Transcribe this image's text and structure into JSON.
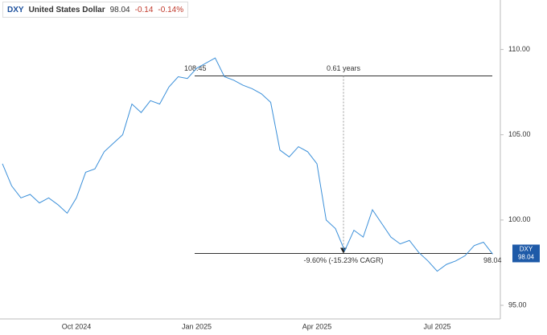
{
  "header": {
    "ticker": "DXY",
    "name": "United States Dollar",
    "price": "98.04",
    "change": "-0.14",
    "change_pct": "-0.14%"
  },
  "chart_data": {
    "type": "line",
    "categories": [
      null,
      null,
      null,
      null,
      null,
      null,
      null,
      null,
      "Oct 2024",
      null,
      null,
      null,
      null,
      null,
      null,
      null,
      null,
      null,
      null,
      null,
      null,
      "Jan 2025",
      null,
      null,
      null,
      null,
      null,
      null,
      null,
      null,
      null,
      null,
      null,
      null,
      "Apr 2025",
      null,
      null,
      null,
      null,
      null,
      null,
      null,
      null,
      null,
      null,
      null,
      null,
      "Jul 2025",
      null,
      null,
      null,
      null,
      null,
      null
    ],
    "series": [
      {
        "name": "DXY",
        "color": "#3a8fd9",
        "values": [
          103.3,
          102.0,
          101.3,
          101.5,
          101.0,
          101.3,
          100.9,
          100.4,
          101.3,
          102.8,
          103.0,
          104.0,
          104.5,
          105.0,
          106.8,
          106.3,
          107.0,
          106.8,
          107.8,
          108.4,
          108.3,
          108.9,
          109.2,
          109.5,
          108.4,
          108.2,
          107.9,
          107.7,
          107.4,
          106.9,
          104.1,
          103.7,
          104.3,
          104.0,
          103.3,
          100.0,
          99.5,
          98.2,
          99.4,
          99.0,
          100.6,
          99.8,
          99.0,
          98.6,
          98.8,
          98.1,
          97.6,
          97.0,
          97.4,
          97.6,
          97.9,
          98.5,
          98.7,
          98.0
        ]
      }
    ],
    "ylim": [
      94.2,
      112.9
    ],
    "yticks": [
      {
        "value": 95,
        "label": "95.00"
      },
      {
        "value": 100,
        "label": "100.00"
      },
      {
        "value": 105,
        "label": "105.00"
      },
      {
        "value": 110,
        "label": "110.00"
      }
    ],
    "measure": {
      "start_value": 108.45,
      "end_value": 98.04,
      "duration": "0.61 years",
      "change": "-9.60% (-15.23% CAGR)",
      "end_label": "98.04"
    },
    "badge": {
      "name": "DXY",
      "value": "98.04"
    }
  }
}
